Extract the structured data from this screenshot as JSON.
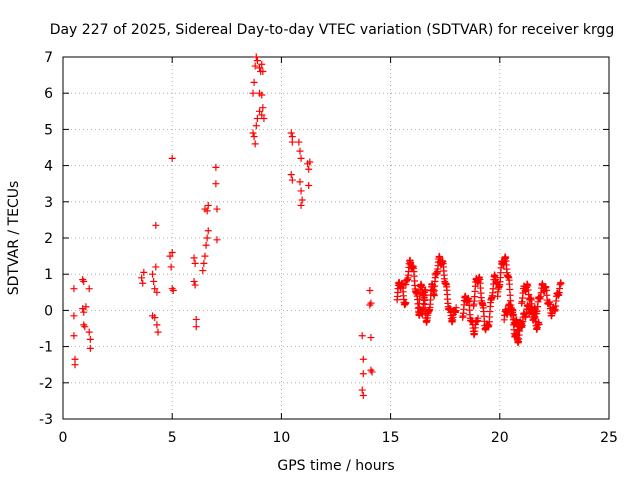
{
  "chart_data": {
    "type": "scatter",
    "title": "Day 227 of 2025, Sidereal Day-to-day VTEC variation (SDTVAR) for receiver krgg",
    "xlabel": "GPS time / hours",
    "ylabel": "SDTVAR / TECUs",
    "xlim": [
      0,
      25
    ],
    "ylim": [
      -3,
      7
    ],
    "xticks": [
      "0",
      "5",
      "10",
      "15",
      "20",
      "25"
    ],
    "yticks": [
      "-3",
      "-2",
      "-1",
      "0",
      "1",
      "2",
      "3",
      "4",
      "5",
      "6",
      "7"
    ],
    "grid": true,
    "marker": "+",
    "color": "#ff0000",
    "series": [
      {
        "name": "SDTVAR",
        "points": [
          [
            0.5,
            0.6
          ],
          [
            0.5,
            -0.15
          ],
          [
            0.5,
            -0.7
          ],
          [
            0.55,
            -1.35
          ],
          [
            0.55,
            -1.5
          ],
          [
            0.9,
            0.85
          ],
          [
            0.95,
            0.8
          ],
          [
            0.9,
            0.05
          ],
          [
            0.95,
            -0.05
          ],
          [
            0.95,
            -0.4
          ],
          [
            1.0,
            -0.45
          ],
          [
            1.05,
            0.1
          ],
          [
            1.2,
            0.6
          ],
          [
            1.2,
            -0.6
          ],
          [
            1.25,
            -0.8
          ],
          [
            1.25,
            -1.05
          ],
          [
            3.6,
            0.9
          ],
          [
            3.65,
            0.75
          ],
          [
            3.7,
            1.05
          ],
          [
            4.1,
            1.0
          ],
          [
            4.15,
            0.8
          ],
          [
            4.2,
            0.6
          ],
          [
            4.25,
            1.2
          ],
          [
            4.3,
            0.5
          ],
          [
            4.25,
            2.35
          ],
          [
            4.1,
            -0.15
          ],
          [
            4.2,
            -0.2
          ],
          [
            4.3,
            -0.4
          ],
          [
            4.35,
            -0.6
          ],
          [
            4.9,
            1.5
          ],
          [
            4.95,
            1.2
          ],
          [
            5.0,
            1.6
          ],
          [
            5.0,
            0.6
          ],
          [
            5.05,
            0.55
          ],
          [
            5.0,
            4.2
          ],
          [
            6.0,
            1.45
          ],
          [
            6.05,
            1.3
          ],
          [
            6.0,
            0.8
          ],
          [
            6.05,
            0.7
          ],
          [
            6.1,
            -0.25
          ],
          [
            6.1,
            -0.45
          ],
          [
            6.4,
            1.1
          ],
          [
            6.45,
            1.3
          ],
          [
            6.5,
            1.5
          ],
          [
            6.55,
            1.8
          ],
          [
            6.6,
            2.0
          ],
          [
            6.65,
            2.2
          ],
          [
            6.5,
            2.8
          ],
          [
            6.6,
            2.75
          ],
          [
            6.65,
            2.9
          ],
          [
            7.0,
            3.95
          ],
          [
            7.0,
            3.5
          ],
          [
            7.05,
            2.8
          ],
          [
            7.05,
            1.95
          ],
          [
            8.7,
            4.9
          ],
          [
            8.75,
            4.8
          ],
          [
            8.8,
            4.6
          ],
          [
            8.85,
            5.1
          ],
          [
            8.9,
            5.3
          ],
          [
            8.7,
            6.0
          ],
          [
            8.75,
            6.3
          ],
          [
            8.8,
            6.75
          ],
          [
            8.85,
            7.0
          ],
          [
            8.9,
            6.9
          ],
          [
            9.0,
            6.7
          ],
          [
            9.05,
            6.6
          ],
          [
            9.1,
            6.8
          ],
          [
            9.15,
            6.6
          ],
          [
            9.0,
            6.0
          ],
          [
            9.1,
            5.95
          ],
          [
            9.0,
            5.5
          ],
          [
            9.1,
            5.4
          ],
          [
            9.15,
            5.6
          ],
          [
            9.2,
            5.3
          ],
          [
            10.45,
            4.9
          ],
          [
            10.5,
            4.8
          ],
          [
            10.5,
            4.65
          ],
          [
            10.45,
            3.75
          ],
          [
            10.5,
            3.6
          ],
          [
            10.8,
            4.65
          ],
          [
            10.85,
            4.4
          ],
          [
            10.9,
            4.2
          ],
          [
            10.85,
            3.55
          ],
          [
            10.9,
            3.3
          ],
          [
            10.95,
            3.05
          ],
          [
            10.9,
            2.9
          ],
          [
            11.2,
            4.05
          ],
          [
            11.25,
            3.9
          ],
          [
            11.3,
            4.1
          ],
          [
            11.25,
            3.45
          ],
          [
            13.7,
            -0.7
          ],
          [
            13.75,
            -1.35
          ],
          [
            13.75,
            -1.75
          ],
          [
            13.7,
            -2.2
          ],
          [
            13.75,
            -2.35
          ],
          [
            14.05,
            0.55
          ],
          [
            14.1,
            0.2
          ],
          [
            14.05,
            0.15
          ],
          [
            14.1,
            -0.75
          ],
          [
            14.1,
            -1.65
          ],
          [
            14.15,
            -1.7
          ]
        ],
        "dense_traces": [
          {
            "x_start": 15.3,
            "x_end": 15.7,
            "samples": 30,
            "base": 0.4,
            "amplitude": 0.35,
            "period": 0.6
          },
          {
            "x_start": 15.7,
            "x_end": 16.6,
            "samples": 60,
            "base": 0.6,
            "amplitude": 0.7,
            "period": 0.9
          },
          {
            "x_start": 16.3,
            "x_end": 17.0,
            "samples": 50,
            "base": 0.2,
            "amplitude": 0.45,
            "period": 0.5
          },
          {
            "x_start": 17.0,
            "x_end": 18.0,
            "samples": 70,
            "base": 0.6,
            "amplitude": 0.8,
            "period": 1.1
          },
          {
            "x_start": 18.3,
            "x_end": 19.0,
            "samples": 45,
            "base": -0.1,
            "amplitude": 0.45,
            "period": 0.7
          },
          {
            "x_start": 18.8,
            "x_end": 19.9,
            "samples": 70,
            "base": 0.2,
            "amplitude": 0.7,
            "period": 0.8
          },
          {
            "x_start": 19.9,
            "x_end": 21.0,
            "samples": 70,
            "base": 0.3,
            "amplitude": 1.1,
            "period": 1.2
          },
          {
            "x_start": 20.2,
            "x_end": 21.8,
            "samples": 80,
            "base": -0.2,
            "amplitude": 0.25,
            "period": 0.9
          },
          {
            "x_start": 21.0,
            "x_end": 22.8,
            "samples": 90,
            "base": 0.3,
            "amplitude": 0.35,
            "period": 0.8
          }
        ]
      }
    ]
  }
}
